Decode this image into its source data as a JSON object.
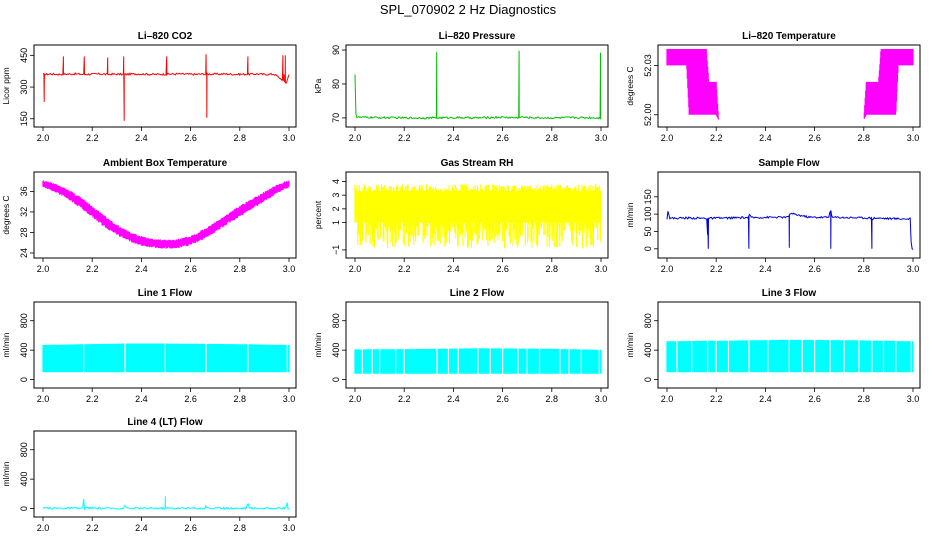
{
  "figure": {
    "title": "SPL_070902  2 Hz Diagnostics"
  },
  "chart_data": [
    {
      "type": "line",
      "title": "Li–820 CO2",
      "xlabel": "",
      "ylabel": "Licor ppm",
      "color": "#ff0000",
      "xlim": [
        2.0,
        3.0
      ],
      "ylim": [
        130,
        480
      ],
      "xticks": [
        "2.0",
        "2.2",
        "2.4",
        "2.6",
        "2.8",
        "3.0"
      ],
      "xtick_values": [
        2.0,
        2.2,
        2.4,
        2.6,
        2.8,
        3.0
      ],
      "yticks": [
        "150",
        "300",
        "450"
      ],
      "ytick_values": [
        150,
        300,
        450
      ],
      "series": [
        {
          "x": [
            2.0,
            2.005,
            2.01,
            2.03,
            2.06,
            2.08,
            2.083,
            2.09,
            2.13,
            2.165,
            2.168,
            2.2,
            2.24,
            2.26,
            2.263,
            2.3,
            2.325,
            2.328,
            2.33,
            2.38,
            2.42,
            2.45,
            2.5,
            2.503,
            2.55,
            2.59,
            2.62,
            2.66,
            2.663,
            2.666,
            2.7,
            2.74,
            2.78,
            2.83,
            2.833,
            2.87,
            2.9,
            2.94,
            2.975,
            2.98,
            2.985,
            2.99,
            3.0
          ],
          "y": [
            360,
            230,
            360,
            362,
            360,
            361,
            445,
            361,
            362,
            360,
            445,
            361,
            362,
            360,
            440,
            361,
            360,
            445,
            140,
            362,
            361,
            360,
            361,
            445,
            362,
            361,
            360,
            362,
            455,
            155,
            361,
            362,
            360,
            361,
            445,
            362,
            360,
            361,
            450,
            360,
            450,
            320,
            362
          ]
        }
      ]
    },
    {
      "type": "line",
      "title": "Li–820 Pressure",
      "xlabel": "",
      "ylabel": "kPa",
      "color": "#00c000",
      "xlim": [
        2.0,
        3.0
      ],
      "ylim": [
        68.5,
        90.3
      ],
      "xticks": [
        "2.0",
        "2.2",
        "2.4",
        "2.6",
        "2.8",
        "3.0"
      ],
      "xtick_values": [
        2.0,
        2.2,
        2.4,
        2.6,
        2.8,
        3.0
      ],
      "yticks": [
        "70",
        "80",
        "90"
      ],
      "ytick_values": [
        70,
        80,
        90
      ],
      "series": [
        {
          "x": [
            2.0,
            2.002,
            2.004,
            2.1,
            2.2,
            2.33,
            2.332,
            2.334,
            2.4,
            2.5,
            2.6,
            2.665,
            2.667,
            2.67,
            2.7,
            2.8,
            2.9,
            2.998,
            3.0
          ],
          "y": [
            83,
            84,
            70.2,
            70.1,
            70.0,
            70.0,
            89.5,
            70.0,
            70.1,
            70.0,
            70.2,
            70.0,
            89.8,
            70.3,
            70.1,
            70.0,
            70.1,
            89.2,
            70.0
          ]
        }
      ]
    },
    {
      "type": "area",
      "title": "Li–820 Temperature",
      "xlabel": "",
      "ylabel": "degrees C",
      "color": "#ff00ff",
      "xlim": [
        2.0,
        3.0
      ],
      "ylim": [
        51.995,
        52.04
      ],
      "xticks": [
        "2.0",
        "2.2",
        "2.4",
        "2.6",
        "2.8",
        "3.0"
      ],
      "xtick_values": [
        2.0,
        2.2,
        2.4,
        2.6,
        2.8,
        3.0
      ],
      "yticks": [
        "52.00",
        "52.03"
      ],
      "ytick_values": [
        52.0,
        52.03
      ],
      "series": [
        {
          "x": [
            2.0,
            2.08,
            2.09,
            2.16,
            2.17,
            2.2,
            2.21,
            2.8,
            2.81,
            2.86,
            2.87,
            2.93,
            2.94,
            3.0
          ],
          "low": [
            52.03,
            52.03,
            52.0,
            52.0,
            52.0,
            52.0,
            51.997,
            51.997,
            52.0,
            52.0,
            52.0,
            52.0,
            52.03,
            52.03
          ],
          "high": [
            52.04,
            52.04,
            52.04,
            52.04,
            52.02,
            52.02,
            51.997,
            51.997,
            52.02,
            52.02,
            52.04,
            52.04,
            52.04,
            52.04
          ]
        }
      ]
    },
    {
      "type": "area",
      "title": "Ambient Box Temperature",
      "xlabel": "",
      "ylabel": "degrees C",
      "color": "#ff00ff",
      "xlim": [
        2.0,
        3.0
      ],
      "ylim": [
        23.8,
        39.0
      ],
      "xticks": [
        "2.0",
        "2.2",
        "2.4",
        "2.6",
        "2.8",
        "3.0"
      ],
      "xtick_values": [
        2.0,
        2.2,
        2.4,
        2.6,
        2.8,
        3.0
      ],
      "yticks": [
        "24",
        "28",
        "32",
        "36"
      ],
      "ytick_values": [
        24,
        28,
        32,
        36
      ],
      "series": [
        {
          "x": [
            2.0,
            2.05,
            2.1,
            2.15,
            2.2,
            2.25,
            2.3,
            2.35,
            2.4,
            2.45,
            2.5,
            2.55,
            2.6,
            2.65,
            2.7,
            2.75,
            2.8,
            2.85,
            2.9,
            2.95,
            3.0
          ],
          "low": [
            36.8,
            35.8,
            34.5,
            32.8,
            31.0,
            29.0,
            27.5,
            26.2,
            25.4,
            25.0,
            24.8,
            24.9,
            25.5,
            26.6,
            28.0,
            29.6,
            31.0,
            32.5,
            34.0,
            35.5,
            36.8
          ],
          "high": [
            38.2,
            37.5,
            36.5,
            35.0,
            33.2,
            31.3,
            29.6,
            28.2,
            27.3,
            26.8,
            26.6,
            26.8,
            27.4,
            28.6,
            30.0,
            31.7,
            33.2,
            34.6,
            36.0,
            37.3,
            38.3
          ]
        }
      ]
    },
    {
      "type": "area",
      "title": "Gas Stream RH",
      "xlabel": "",
      "ylabel": "percent",
      "color": "#ffff00",
      "xlim": [
        2.0,
        3.0
      ],
      "ylim": [
        -1.3,
        4.4
      ],
      "xticks": [
        "2.0",
        "2.2",
        "2.4",
        "2.6",
        "2.8",
        "3.0"
      ],
      "xtick_values": [
        2.0,
        2.2,
        2.4,
        2.6,
        2.8,
        3.0
      ],
      "yticks": [
        "−1",
        "1",
        "2",
        "3",
        "4"
      ],
      "ytick_values": [
        -1,
        1,
        2,
        3,
        4
      ],
      "series": [
        {
          "x": [
            2.0,
            3.0
          ],
          "low": [
            -0.9,
            -0.9
          ],
          "high": [
            3.8,
            3.8
          ],
          "core_low": [
            1.0,
            1.0
          ],
          "core_high": [
            3.3,
            3.3
          ]
        }
      ]
    },
    {
      "type": "line",
      "title": "Sample Flow",
      "xlabel": "",
      "ylabel": "ml/min",
      "color": "#0000dd",
      "xlim": [
        2.0,
        3.0
      ],
      "ylim": [
        -15,
        210
      ],
      "xticks": [
        "2.0",
        "2.2",
        "2.4",
        "2.6",
        "2.8",
        "3.0"
      ],
      "xtick_values": [
        2.0,
        2.2,
        2.4,
        2.6,
        2.8,
        3.0
      ],
      "yticks": [
        "0",
        "50",
        "100",
        "150"
      ],
      "ytick_values": [
        0,
        50,
        100,
        150
      ],
      "series": [
        {
          "x": [
            2.0,
            2.005,
            2.01,
            2.08,
            2.16,
            2.165,
            2.168,
            2.17,
            2.25,
            2.33,
            2.333,
            2.336,
            2.34,
            2.42,
            2.493,
            2.497,
            2.5,
            2.58,
            2.66,
            2.663,
            2.666,
            2.67,
            2.75,
            2.83,
            2.833,
            2.836,
            2.84,
            2.92,
            2.99,
            2.993,
            2.996,
            3.0
          ],
          "y": [
            88,
            115,
            88,
            89,
            88,
            40,
            0,
            88,
            89,
            90,
            0,
            100,
            90,
            91,
            91,
            3,
            102,
            91,
            91,
            122,
            0,
            91,
            90,
            89,
            0,
            85,
            89,
            87,
            86,
            0,
            0,
            0
          ]
        }
      ]
    },
    {
      "type": "area",
      "title": "Line 1 Flow",
      "xlabel": "",
      "ylabel": "ml/min",
      "color": "#00ffff",
      "xlim": [
        2.0,
        3.0
      ],
      "ylim": [
        -60,
        1000
      ],
      "xticks": [
        "2.0",
        "2.2",
        "2.4",
        "2.6",
        "2.8",
        "3.0"
      ],
      "xtick_values": [
        2.0,
        2.2,
        2.4,
        2.6,
        2.8,
        3.0
      ],
      "yticks": [
        "0",
        "400",
        "800"
      ],
      "ytick_values": [
        0,
        400,
        800
      ],
      "series": [
        {
          "x": [
            2.0,
            2.16,
            2.33,
            2.5,
            2.66,
            2.83,
            3.0
          ],
          "low": [
            100,
            100,
            100,
            100,
            100,
            100,
            100
          ],
          "high": [
            470,
            480,
            490,
            490,
            485,
            480,
            470
          ],
          "gaps": [
            2.165,
            2.333,
            2.497,
            2.663,
            2.833,
            2.993
          ]
        }
      ]
    },
    {
      "type": "area",
      "title": "Line 2 Flow",
      "xlabel": "",
      "ylabel": "ml/min",
      "color": "#00ffff",
      "xlim": [
        2.0,
        3.0
      ],
      "ylim": [
        -60,
        1000
      ],
      "xticks": [
        "2.0",
        "2.2",
        "2.4",
        "2.6",
        "2.8",
        "3.0"
      ],
      "xtick_values": [
        2.0,
        2.2,
        2.4,
        2.6,
        2.8,
        3.0
      ],
      "yticks": [
        "0",
        "400",
        "800"
      ],
      "ytick_values": [
        0,
        400,
        800
      ],
      "series": [
        {
          "x": [
            2.0,
            2.25,
            2.5,
            2.75,
            3.0
          ],
          "low": [
            80,
            80,
            80,
            80,
            80
          ],
          "high": [
            410,
            415,
            425,
            420,
            405
          ],
          "gaps": [
            2.03,
            2.07,
            2.1,
            2.165,
            2.2,
            2.333,
            2.38,
            2.42,
            2.5,
            2.55,
            2.6,
            2.663,
            2.7,
            2.75,
            2.833,
            2.87,
            2.92,
            2.993
          ]
        }
      ]
    },
    {
      "type": "area",
      "title": "Line 3 Flow",
      "xlabel": "",
      "ylabel": "ml/min",
      "color": "#00ffff",
      "xlim": [
        2.0,
        3.0
      ],
      "ylim": [
        -60,
        1000
      ],
      "xticks": [
        "2.0",
        "2.2",
        "2.4",
        "2.6",
        "2.8",
        "3.0"
      ],
      "xtick_values": [
        2.0,
        2.2,
        2.4,
        2.6,
        2.8,
        3.0
      ],
      "yticks": [
        "0",
        "400",
        "800"
      ],
      "ytick_values": [
        0,
        400,
        800
      ],
      "series": [
        {
          "x": [
            2.0,
            2.25,
            2.5,
            2.75,
            3.0
          ],
          "low": [
            100,
            100,
            100,
            100,
            100
          ],
          "high": [
            520,
            530,
            540,
            535,
            520
          ],
          "gaps": [
            2.04,
            2.1,
            2.165,
            2.2,
            2.25,
            2.333,
            2.41,
            2.497,
            2.55,
            2.6,
            2.663,
            2.72,
            2.78,
            2.833,
            2.88,
            2.93,
            2.993
          ]
        }
      ]
    },
    {
      "type": "line",
      "title": "Line 4 (LT) Flow",
      "xlabel": "",
      "ylabel": "ml/min",
      "color": "#00ffff",
      "xlim": [
        2.0,
        3.0
      ],
      "ylim": [
        -60,
        1000
      ],
      "xticks": [
        "2.0",
        "2.2",
        "2.4",
        "2.6",
        "2.8",
        "3.0"
      ],
      "xtick_values": [
        2.0,
        2.2,
        2.4,
        2.6,
        2.8,
        3.0
      ],
      "yticks": [
        "0",
        "400",
        "800"
      ],
      "ytick_values": [
        0,
        400,
        800
      ],
      "series": [
        {
          "x": [
            2.0,
            2.163,
            2.165,
            2.167,
            2.33,
            2.333,
            2.336,
            2.495,
            2.497,
            2.5,
            2.66,
            2.663,
            2.666,
            2.83,
            2.833,
            2.836,
            2.99,
            2.993,
            2.996,
            3.0
          ],
          "y": [
            5,
            5,
            150,
            5,
            5,
            90,
            5,
            5,
            165,
            5,
            5,
            90,
            5,
            5,
            160,
            5,
            5,
            110,
            5,
            5
          ]
        }
      ]
    }
  ]
}
